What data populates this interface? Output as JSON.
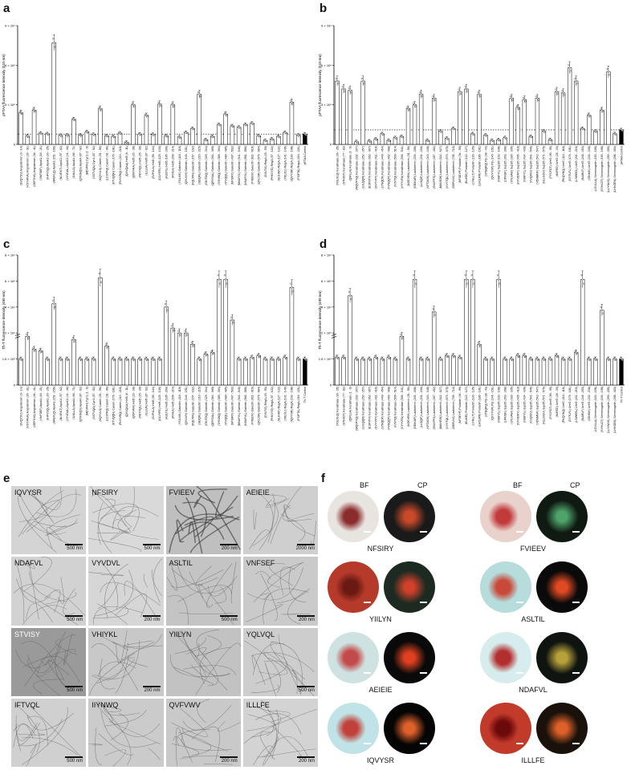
{
  "panels": {
    "a": {
      "letter": "a",
      "ylabel": "pFTAA fluorescence intensity (510 nm)",
      "ytop": "9 × 10⁴",
      "ymid": "6 × 10⁴",
      "ylow": "3 × 10⁴",
      "yzero": "0"
    },
    "b": {
      "letter": "b",
      "ylabel": "pFTAA fluorescence intensity (510 nm)",
      "ytop": "9 × 10⁴",
      "ymid": "6 × 10⁴",
      "ylow": "3 × 10⁴",
      "yzero": "0"
    },
    "c": {
      "letter": "c",
      "ylabel": "Th-T fluorescence intensity (490 nm)",
      "ytop": "8 × 10⁴",
      "y2": "6 × 10⁴",
      "y3": "4 × 10⁴",
      "y4": "2 × 10⁴",
      "y5": "1.5 × 10⁴",
      "y6": "0"
    },
    "d": {
      "letter": "d",
      "ylabel": "Th-T fluorescence intensity (490 nm)",
      "ytop": "8 × 10⁴",
      "y2": "6 × 10⁴",
      "y3": "4 × 10⁴",
      "y4": "2 × 10⁴",
      "y5": "1.5 × 10⁴",
      "y6": "0"
    },
    "e": {
      "letter": "e"
    },
    "f": {
      "letter": "f",
      "bf": "BF",
      "cp": "CP"
    }
  },
  "chart_data": [
    {
      "type": "bar",
      "panel": "a",
      "ylabel": "pFTAA fluorescence intensity (510 nm)",
      "ylim": [
        0,
        90000
      ],
      "categories": [
        "(SVQYSV) Angiotensin (9 - 14)",
        "(VGYWVA) Angiotensin (26 - 31)",
        "(GEFSYA) Angiotensin (36 - 41)",
        "(VNFSEF) ApoA1 (16 - 21)",
        "(IHFVSQ) ApoA1 (20 - 25)",
        "(AFEFLQ) ApoA1 (151 - 156)",
        "(NLVEKT) ApoC2 (57 - 62)",
        "(VYVDAL) ApoC2 (41 - 46)",
        "(ILNLLA) ApoA4 (66 - 71)",
        "(QYNNQS) ApoA4 (87 - 92)",
        "(MDVFIN) Cyn1 (1 - 6)",
        "(SSTVQA) Cyn1 (87 - 92)",
        "(KQYVLS) Casein (51 - 56)",
        "(LCSTFQ) Casein (91 - 96)",
        "(KTVQQN) Casein (176 - 181)",
        "(FNYVRQ) Casein (213 - 218)",
        "(QVVQAA) Hel5 (6 - 11)",
        "(QGFVKA) Hel5 (23 - 28)",
        "(FEYVQL) Hel5 (25 - 30)",
        "(ILLLVA) Hel5 (87 - 92)",
        "(SVFVLA) Hel5 (99 - 104)",
        "(DLVYFE) Hel5 (125 - 130)",
        "(ASLTIL) Hel5 (195 - 200)",
        "(AYIILK) Hel5 (209 - 214)",
        "(YGLIVK) Galectin (110 - 115)",
        "(QYLIVH) Galectin (146 - 151)",
        "(FQLYFN) Galectin (157 - 162)",
        "(SEIQFL) Galectin (210 - 215)",
        "(GKITDQ) Galectin (329 - 334)",
        "(QRYSAL) Galectin (364 - 369)",
        "(SYNWQ) Galectin (389 - 394)",
        "(IYVQQL) Galectin (480 - 485)",
        "(NFSIRY) Galectin (497 - 502)",
        "(MVAFYL) Galectin (541 - 546)",
        "(NSAFVL) Galectin (581 - 586)",
        "(FVEEIV) Galectin (611 - 616)",
        "(QVLISF) Galectin (679 - 684)",
        "(GVLTIS) RegA (45 - 50)",
        "(FHKVYD) RegA (97 - 102)",
        "(NLIHKF) RegA (127 - 132)",
        "(YKLVLI) RegA (141 - 146)",
        "(IQVYSR) RegA (193 - 198)",
        "(FSIFTA) RegA (216 - 221)",
        "pFTAA Control"
      ],
      "values": [
        24000,
        6200,
        26000,
        8500,
        8000,
        77000,
        6800,
        7000,
        19000,
        7000,
        9500,
        7500,
        27000,
        6500,
        6000,
        8500,
        1500,
        30000,
        7800,
        22000,
        7500,
        30500,
        6500,
        30000,
        5500,
        9000,
        12000,
        38000,
        3500,
        6000,
        15000,
        23000,
        14000,
        13000,
        15000,
        16000,
        6500,
        3000,
        4000,
        6000,
        9000,
        32000,
        7000,
        7800
      ]
    },
    {
      "type": "bar",
      "panel": "b",
      "ylabel": "pFTAA fluorescence intensity (510 nm)",
      "ylim": [
        0,
        90000
      ],
      "categories": [
        "(YGLVLQ) Keratinase (30 - 35)",
        "(STNIGY) Keratinase (77 - 82)",
        "(QIFLLA) Keratinase (1 - 6)",
        "(WQVFYQ) Keratinase (202 - 207)",
        "(LVLQQR) Keratinase (252 - 257)",
        "(ESFVFV) Keratinase (362 - 367)",
        "(GVYYFY) Keratinase (411 - 416)",
        "(LYNQDF) Keratinase (449 - 454)",
        "(VYNQQT) Keratinase (463 - 468)",
        "(IVIVTQ) Keratinase (509 - 514)",
        "(VYYVFA) Keratinase (536 - 541)",
        "(NGEVRH) Lactoferrin (51 - 56)",
        "(GEIKAFI) Lactoferrin (203 - 208)",
        "(LLSQIF) Lactoferrin (231 - 236)",
        "(VFTAGK) Lactoferrin (343 - 348)",
        "(GNVFFS) Lactoferrin (487 - 492)",
        "(MAVIEW) Lactoferrin (622 - 627)",
        "(VVYTQL) Lactoferrin (670 - 675)",
        "(GEFLNV) Lactoferrin (705 - 710)",
        "(NFSEYP) Prolactin (94 - 99)",
        "(ELIKEI) Prolactin (122 - 127)",
        "(LYHLLT) Prolactin (130 - 135)",
        "(LHCLRR) Prolactin (186 - 191)",
        "(STEQFQ) Pip (38 - 43)",
        "(QVYVSP) Pip (146 - 151)",
        "(ISNFYL) Sup35 (103 - 108)",
        "(LIFNGK) Sup35 (263 - 268)",
        "(SYLVAW) Sup35 (330 - 335)",
        "(NYVEWY) Sup35 (405 - 410)",
        "(ISNFYL) Sup35 (434 - 439)",
        "(VVQIGV) Sup35 (541 - 546)",
        "(VDNMNF) Sup35 (542 - 547)",
        "(NLLGGV) Sup35 (571 - 576)",
        "(FYCFDT) UreG (90 - 95)",
        "(INIFED) UreG (28 - 33)",
        "(PKQYNQ) UreG (113 - 118)",
        "(GYTLFL) UreG (176 - 181)",
        "(LSWEEL) UreG (211 - 216)",
        "(INARLF) UreG (248 - 253)",
        "(IGNKIK) UreG (233 - 238)",
        "(LGVLLA) Semenogelin (153 - 158)",
        "(SYHLDT) Semenogelin (193 - 198)",
        "(LLIYNNS) Semenogelin (250 - 255)",
        "(LHHGEN) Semenogelin (298 - 303)",
        "pFTAA Control"
      ],
      "values": [
        48000,
        42000,
        41000,
        2000,
        48000,
        2500,
        4000,
        8000,
        3000,
        5000,
        6000,
        27000,
        30000,
        38000,
        3000,
        35000,
        10000,
        4500,
        12000,
        40000,
        42000,
        8000,
        38000,
        7000,
        3000,
        3500,
        5000,
        35000,
        28000,
        34000,
        6000,
        35000,
        10000,
        3500,
        40000,
        39000,
        58000,
        48000,
        12000,
        22000,
        10000,
        26000,
        55000,
        8000,
        11000
      ]
    },
    {
      "type": "bar",
      "panel": "c",
      "ylabel": "Th-T fluorescence intensity (490 nm)",
      "ylim": [
        0,
        80000
      ],
      "categories": [
        "(SVQYSV) Angiotensin (9 - 14)",
        "(VGYWVA) Angiotensin (26 - 31)",
        "(GEFSYA) Angiotensin (36 - 41)",
        "(VNFSEF) ApoA1 (16 - 21)",
        "(IHFVSQ) ApoA1 (20 - 25)",
        "(AFEFLQ) ApoA1 (151 - 156)",
        "(NLVEKT) ApoC2 (57 - 62)",
        "(VYVDAL) ApoC2 (41 - 46)",
        "(ILNLLA) ApoA4 (66 - 71)",
        "(QYNNQS) ApoA4 (87 - 92)",
        "(MDVFIN) Cyn1 (1 - 6)",
        "(SSTVQA) Cyn1 (87 - 92)",
        "(KQYVLS) Casein (51 - 56)",
        "(LCSTFQ) Casein (91 - 96)",
        "(KTVQQN) Casein (176 - 181)",
        "(FNYVRQ) Casein (213 - 218)",
        "(QVVQAA) Hel5 (6 - 11)",
        "(QGFVKA) Hel5 (23 - 28)",
        "(FEYVQL) Hel5 (25 - 30)",
        "(ILLLVA) Hel5 (87 - 92)",
        "(SVFVLA) Hel5 (99 - 104)",
        "(DLVYFE) Hel5 (125 - 130)",
        "(ASLTIL) Hel5 (195 - 200)",
        "(AYIILK) Hel5 (209 - 214)",
        "(YGLIVK) Galectin (110 - 115)",
        "(QYLIVH) Galectin (146 - 151)",
        "(FQLYFN) Galectin (157 - 162)",
        "(SEIQFL) Galectin (210 - 215)",
        "(GKITDQ) Galectin (329 - 334)",
        "(QRYSAL) Galectin (364 - 369)",
        "(SYNWQ) Galectin (389 - 394)",
        "(IYVQQL) Galectin (480 - 485)",
        "(NFSIRY) Galectin (497 - 502)",
        "(MVAFYL) Galectin (541 - 546)",
        "(NSAFVL) Galectin (581 - 586)",
        "(FVEEIV) Galectin (611 - 616)",
        "(QVLISF) Galectin (679 - 684)",
        "(GVLTIS) RegA (45 - 50)",
        "(FHKVYD) RegA (97 - 102)",
        "(NLIHKF) RegA (127 - 132)",
        "(YKLVLI) RegA (141 - 146)",
        "(IQVYSR) RegA (193 - 198)",
        "(FSIFTA) RegA (216 - 221)",
        "Th-T Control"
      ],
      "values": [
        16000,
        30000,
        22000,
        21000,
        16000,
        50000,
        16000,
        16000,
        28000,
        16000,
        16000,
        16000,
        66000,
        24000,
        16000,
        16000,
        16000,
        16000,
        16000,
        16000,
        16000,
        16000,
        48000,
        35000,
        32000,
        32000,
        25000,
        16000,
        19000,
        20000,
        65000,
        65000,
        40000,
        16000,
        16000,
        17000,
        18000,
        16000,
        16000,
        16000,
        17000,
        60000,
        16000,
        16000
      ]
    },
    {
      "type": "bar",
      "panel": "d",
      "ylabel": "Th-T fluorescence intensity (490 nm)",
      "ylim": [
        0,
        80000
      ],
      "categories": [
        "(YGLVLQ) Keratinase (30 - 35)",
        "(STNIGY) Keratinase (77 - 82)",
        "(QIFLLA) Keratinase (1 - 6)",
        "(WQVFYQ) Keratinase (202 - 207)",
        "(LVLQQR) Keratinase (252 - 257)",
        "(ESFVFV) Keratinase (362 - 367)",
        "(GVYYFY) Keratinase (411 - 416)",
        "(LYNQDF) Keratinase (449 - 454)",
        "(VYNQQT) Keratinase (463 - 468)",
        "(IVIVTQ) Keratinase (509 - 514)",
        "(VYYVFA) Keratinase (536 - 541)",
        "(NGEVRH) Lactoferrin (51 - 56)",
        "(GEIKAFI) Lactoferrin (203 - 208)",
        "(LLSQIF) Lactoferrin (231 - 236)",
        "(VFTAGK) Lactoferrin (343 - 348)",
        "(GNVFFS) Lactoferrin (487 - 492)",
        "(MAVIEW) Lactoferrin (622 - 627)",
        "(VVYTQL) Lactoferrin (670 - 675)",
        "(GEFLNV) Lactoferrin (705 - 710)",
        "(NFSEYP) Prolactin (94 - 99)",
        "(ELIKEI) Prolactin (122 - 127)",
        "(LYHLLT) Prolactin (130 - 135)",
        "(LHCLRR) Prolactin (186 - 191)",
        "(STEQFQ) Pip (38 - 43)",
        "(QVYVSP) Pip (146 - 151)",
        "(ISNFYL) Sup35 (103 - 108)",
        "(LIFNGK) Sup35 (263 - 268)",
        "(SYLVAW) Sup35 (330 - 335)",
        "(NYVEWY) Sup35 (405 - 410)",
        "(ISNFYL) Sup35 (434 - 439)",
        "(VVQIGV) Sup35 (541 - 546)",
        "(VDNMNF) Sup35 (542 - 547)",
        "(NLLGGV) Sup35 (571 - 576)",
        "(FYCFDT) UreG (90 - 95)",
        "(INIFED) UreG (28 - 33)",
        "(PKQYNQ) UreG (113 - 118)",
        "(GYTLFL) UreG (176 - 181)",
        "(LSWEEL) UreG (211 - 216)",
        "(INARLF) UreG (248 - 253)",
        "(IGNKIK) UreG (233 - 238)",
        "(LGVLLA) Semenogelin (153 - 158)",
        "(SYHLDT) Semenogelin (193 - 198)",
        "(LLIYNNS) Semenogelin (250 - 255)",
        "(LHHGEN) Semenogelin (298 - 303)",
        "Th-T Control"
      ],
      "values": [
        17000,
        17000,
        55000,
        16000,
        16000,
        16000,
        17000,
        16000,
        17000,
        16000,
        30000,
        16000,
        65000,
        16000,
        16000,
        45000,
        16000,
        18000,
        18000,
        17000,
        65000,
        65000,
        25000,
        16000,
        16000,
        65000,
        16000,
        16000,
        18000,
        18000,
        16000,
        16000,
        16000,
        16000,
        18000,
        16000,
        16000,
        20000,
        65000,
        16000,
        16000,
        46000,
        16000,
        16000,
        16000
      ]
    }
  ],
  "tem": [
    {
      "label": "IQVYSR",
      "scale": "500 nm"
    },
    {
      "label": "NFSIRY",
      "scale": "500 nm"
    },
    {
      "label": "FVIEEV",
      "scale": "200 nm"
    },
    {
      "label": "AEIEIE",
      "scale": "2000 nm"
    },
    {
      "label": "NDAFVL",
      "scale": "500 nm"
    },
    {
      "label": "VYVDVL",
      "scale": "200 nm"
    },
    {
      "label": "ASLTIL",
      "scale": "500 nm"
    },
    {
      "label": "VNFSEF",
      "scale": "200 nm"
    },
    {
      "label": "STVISY",
      "scale": "500 nm"
    },
    {
      "label": "VHIYKL",
      "scale": "200 nm"
    },
    {
      "label": "YIILYN",
      "scale": ""
    },
    {
      "label": "YQLVQL",
      "scale": "500 nm"
    },
    {
      "label": "IFTVQL",
      "scale": "500 nm"
    },
    {
      "label": "IIYNWQ",
      "scale": ""
    },
    {
      "label": "QVFVWV",
      "scale": "200 nm"
    },
    {
      "label": "ILLLFE",
      "scale": "200 nm"
    }
  ],
  "congo": [
    {
      "name": "NFSIRY",
      "bf": "#e8e4e0",
      "ring": "#8a2c2c",
      "cp": "#1a1a1a",
      "glow": "#c94a2a"
    },
    {
      "name": "FVIEEV",
      "bf": "#e9d2cc",
      "ring": "#c23b3b",
      "cp": "#0f1a12",
      "glow": "#4ea36a"
    },
    {
      "name": "YIILYN",
      "bf": "#b63a2a",
      "ring": "#6a1a12",
      "cp": "#1d2a22",
      "glow": "#d0402a"
    },
    {
      "name": "ASLTIL",
      "bf": "#b6dcdc",
      "ring": "#c8493a",
      "cp": "#0a0a0a",
      "glow": "#e04a22"
    },
    {
      "name": "AEIEIE",
      "bf": "#cfe2e2",
      "ring": "#c24a4a",
      "cp": "#0a0a0a",
      "glow": "#e04020"
    },
    {
      "name": "NDAFVL",
      "bf": "#d7ecec",
      "ring": "#b32e2e",
      "cp": "#101410",
      "glow": "#b7a23a"
    },
    {
      "name": "IQVYSR",
      "bf": "#bfe3e6",
      "ring": "#c2403a",
      "cp": "#050505",
      "glow": "#e0602a"
    },
    {
      "name": "ILLLFE",
      "bf": "#c23a2a",
      "ring": "#6a0a0a",
      "cp": "#1a120a",
      "glow": "#e0602a"
    }
  ]
}
